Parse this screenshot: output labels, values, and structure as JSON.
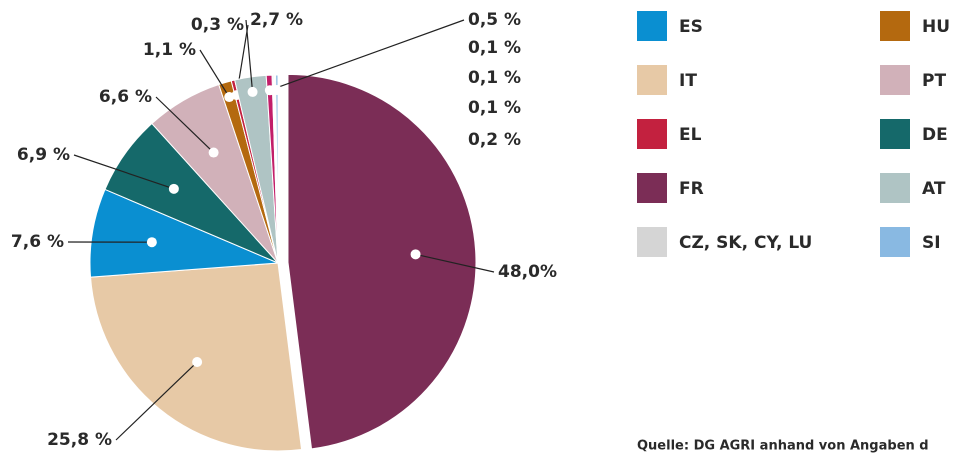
{
  "chart_data": {
    "type": "pie",
    "slices": [
      {
        "value": 48.0,
        "label": "48,0%",
        "color": "#7b2d56"
      },
      {
        "value": 25.8,
        "label": "25,8 %",
        "color": "#e7c9a6"
      },
      {
        "value": 7.6,
        "label": "7,6 %",
        "color": "#0a8fd1"
      },
      {
        "value": 6.9,
        "label": "6,9 %",
        "color": "#15696a"
      },
      {
        "value": 6.6,
        "label": "6,6 %",
        "color": "#d1b1b9"
      },
      {
        "value": 1.1,
        "label": "1,1 %",
        "color": "#b4690f"
      },
      {
        "value": 0.3,
        "label": "0,3 %",
        "color": "#c3213f"
      },
      {
        "value": 2.7,
        "label": "2,7 %",
        "color": "#afc4c4"
      },
      {
        "value": 0.5,
        "label": "0,5 %",
        "color": "#c21f6a"
      },
      {
        "value": 0.1,
        "label": "0,1 %",
        "color": "#d5d5d5"
      },
      {
        "value": 0.1,
        "label": "0,1 %",
        "color": "#d5d5d5"
      },
      {
        "value": 0.1,
        "label": "0,1 %",
        "color": "#d5d5d5"
      },
      {
        "value": 0.2,
        "label": "0,2 %",
        "color": "#89b9e2"
      }
    ],
    "legend": [
      {
        "name": "ES",
        "color": "#0a8fd1"
      },
      {
        "name": "HU",
        "color": "#b4690f"
      },
      {
        "name": "IT",
        "color": "#e7c9a6"
      },
      {
        "name": "PT",
        "color": "#d1b1b9"
      },
      {
        "name": "EL",
        "color": "#c3213f"
      },
      {
        "name": "DE",
        "color": "#15696a"
      },
      {
        "name": "FR",
        "color": "#7b2d56"
      },
      {
        "name": "AT",
        "color": "#afc4c4"
      },
      {
        "name": "CZ, SK, CY, LU",
        "color": "#d5d5d5"
      },
      {
        "name": "SI",
        "color": "#89b9e2"
      }
    ],
    "source": "Quelle: DG AGRI anhand von Angaben d"
  }
}
